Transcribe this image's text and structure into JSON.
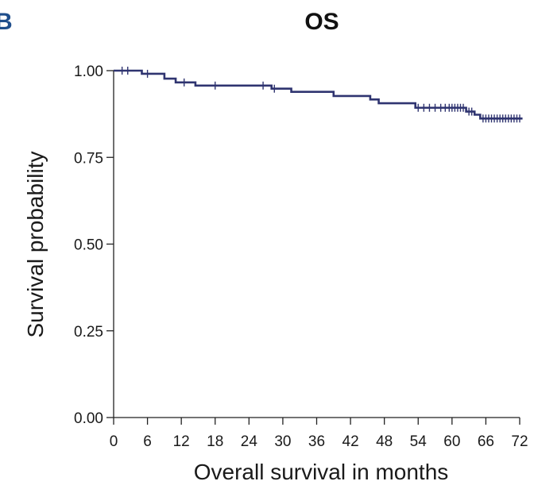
{
  "panel_label": "B",
  "colors": {
    "curve": "#2f3470",
    "axis": "#222222",
    "panel_label": "#1f4e8c"
  },
  "chart_data": {
    "type": "line",
    "subtype": "kaplan-meier",
    "title": "OS",
    "xlabel": "Overall survival in months",
    "ylabel": "Survival probability",
    "xlim": [
      0,
      72
    ],
    "ylim": [
      0,
      1
    ],
    "x_ticks": [
      0,
      6,
      12,
      18,
      24,
      30,
      36,
      42,
      48,
      54,
      60,
      66,
      72
    ],
    "x_tick_labels": [
      "0",
      "6",
      "12",
      "18",
      "24",
      "30",
      "36",
      "42",
      "48",
      "54",
      "60",
      "66",
      "72"
    ],
    "y_ticks": [
      0,
      0.25,
      0.5,
      0.75,
      1
    ],
    "y_tick_labels": [
      "0.00",
      "0.25",
      "0.50",
      "0.75",
      "1.00"
    ],
    "series": [
      {
        "name": "OS",
        "step_points": [
          [
            0,
            1.0
          ],
          [
            5.0,
            1.0
          ],
          [
            5.0,
            0.991
          ],
          [
            9.0,
            0.991
          ],
          [
            9.0,
            0.977
          ],
          [
            11.0,
            0.977
          ],
          [
            11.0,
            0.966
          ],
          [
            14.5,
            0.966
          ],
          [
            14.5,
            0.957
          ],
          [
            28.0,
            0.957
          ],
          [
            28.0,
            0.948
          ],
          [
            31.5,
            0.948
          ],
          [
            31.5,
            0.939
          ],
          [
            39.0,
            0.939
          ],
          [
            39.0,
            0.927
          ],
          [
            45.5,
            0.927
          ],
          [
            45.5,
            0.917
          ],
          [
            47.0,
            0.917
          ],
          [
            47.0,
            0.906
          ],
          [
            53.5,
            0.906
          ],
          [
            53.5,
            0.893
          ],
          [
            62.5,
            0.893
          ],
          [
            62.5,
            0.882
          ],
          [
            64.0,
            0.882
          ],
          [
            64.0,
            0.873
          ],
          [
            65.0,
            0.873
          ],
          [
            65.0,
            0.862
          ],
          [
            72.5,
            0.862
          ]
        ],
        "censor_times": [
          1.5,
          2.5,
          6.0,
          12.5,
          18.0,
          26.5,
          28.5,
          54.0,
          55.0,
          56.0,
          57.0,
          58.0,
          58.8,
          59.5,
          60.0,
          60.5,
          61.0,
          61.5,
          62.0,
          63.0,
          63.5,
          65.5,
          66.0,
          66.5,
          67.0,
          67.5,
          68.0,
          68.5,
          69.0,
          69.5,
          70.0,
          70.5,
          71.0,
          71.5,
          72.0
        ]
      }
    ]
  }
}
